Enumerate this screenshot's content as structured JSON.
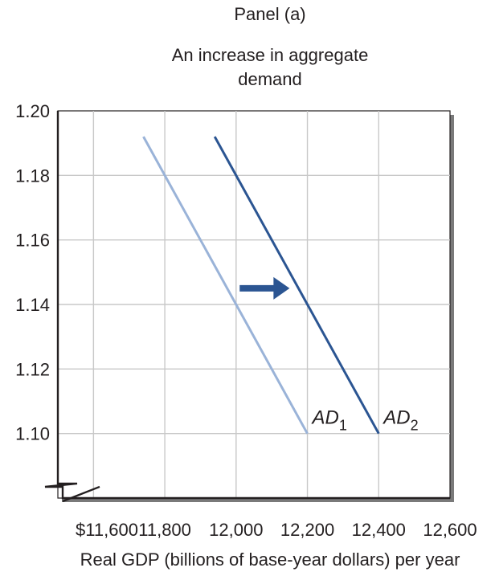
{
  "panel_label": "Panel (a)",
  "colors": {
    "ad1": "#9ab3d8",
    "ad2": "#2b5592",
    "arrow": "#2b5592",
    "grid": "#c8c8c8",
    "frame": "#231f20"
  },
  "chart_data": {
    "type": "line",
    "title": "An increase in aggregate demand",
    "title_lines": [
      "An increase in aggregate",
      "demand"
    ],
    "xlabel": "Real GDP (billions of base-year dollars) per year",
    "ylabel": "",
    "xlim": [
      11500,
      12600
    ],
    "ylim": [
      1.08,
      1.2
    ],
    "x_ticks": [
      11600,
      11800,
      12000,
      12200,
      12400,
      12600
    ],
    "x_tick_labels": [
      "$11,600",
      "11,800",
      "12,000",
      "12,200",
      "12,400",
      "12,600"
    ],
    "y_ticks": [
      1.1,
      1.12,
      1.14,
      1.16,
      1.18,
      1.2
    ],
    "y_tick_labels": [
      "1.10",
      "1.12",
      "1.14",
      "1.16",
      "1.18",
      "1.20"
    ],
    "x_grid": [
      11600,
      11800,
      12000,
      12200,
      12400
    ],
    "y_grid": [
      1.1,
      1.12,
      1.14,
      1.16,
      1.18
    ],
    "grid": true,
    "axis_break": true,
    "series": [
      {
        "name": "AD1",
        "label_main": "AD",
        "label_sub": "1",
        "color": "#9ab3d8",
        "points": [
          [
            11740,
            1.192
          ],
          [
            12200,
            1.1
          ]
        ]
      },
      {
        "name": "AD2",
        "label_main": "AD",
        "label_sub": "2",
        "color": "#2b5592",
        "points": [
          [
            11940,
            1.192
          ],
          [
            12400,
            1.1
          ]
        ]
      }
    ],
    "annotations": [
      {
        "type": "shift-arrow",
        "from": [
          12010,
          1.145
        ],
        "to": [
          12150,
          1.145
        ]
      }
    ]
  }
}
